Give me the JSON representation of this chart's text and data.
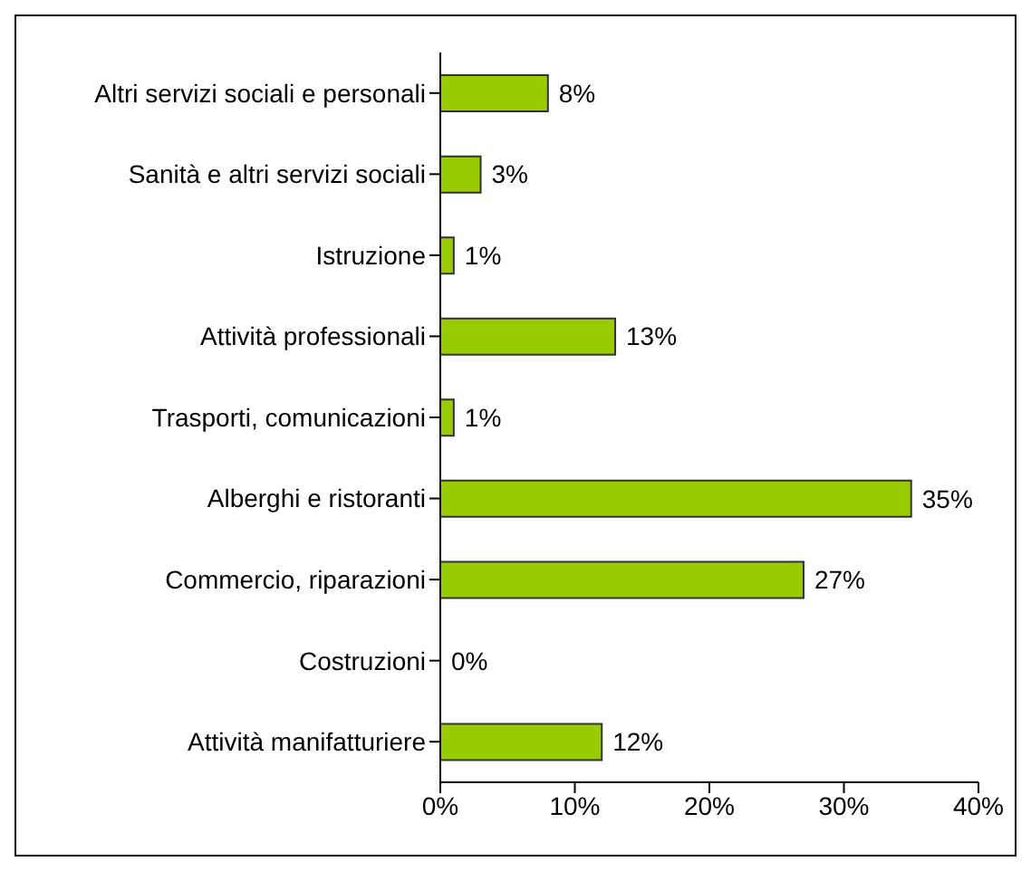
{
  "chart_data": {
    "type": "bar",
    "orientation": "horizontal",
    "categories": [
      "Altri servizi sociali e personali",
      "Sanità e altri servizi sociali",
      "Istruzione",
      "Attività professionali",
      "Trasporti, comunicazioni",
      "Alberghi e ristoranti",
      "Commercio, riparazioni",
      "Costruzioni",
      "Attività manifatturiere"
    ],
    "values": [
      8,
      3,
      1,
      13,
      1,
      35,
      27,
      0,
      12
    ],
    "value_labels": [
      "8%",
      "3%",
      "1%",
      "13%",
      "1%",
      "35%",
      "27%",
      "0%",
      "12%"
    ],
    "color": "#99cc00",
    "xlim": [
      0,
      40
    ],
    "xticks": [
      {
        "value": 0,
        "label": "0%"
      },
      {
        "value": 10,
        "label": "10%"
      },
      {
        "value": 20,
        "label": "20%"
      },
      {
        "value": 30,
        "label": "30%"
      },
      {
        "value": 40,
        "label": "40%"
      }
    ],
    "grid": false,
    "legend": false
  }
}
